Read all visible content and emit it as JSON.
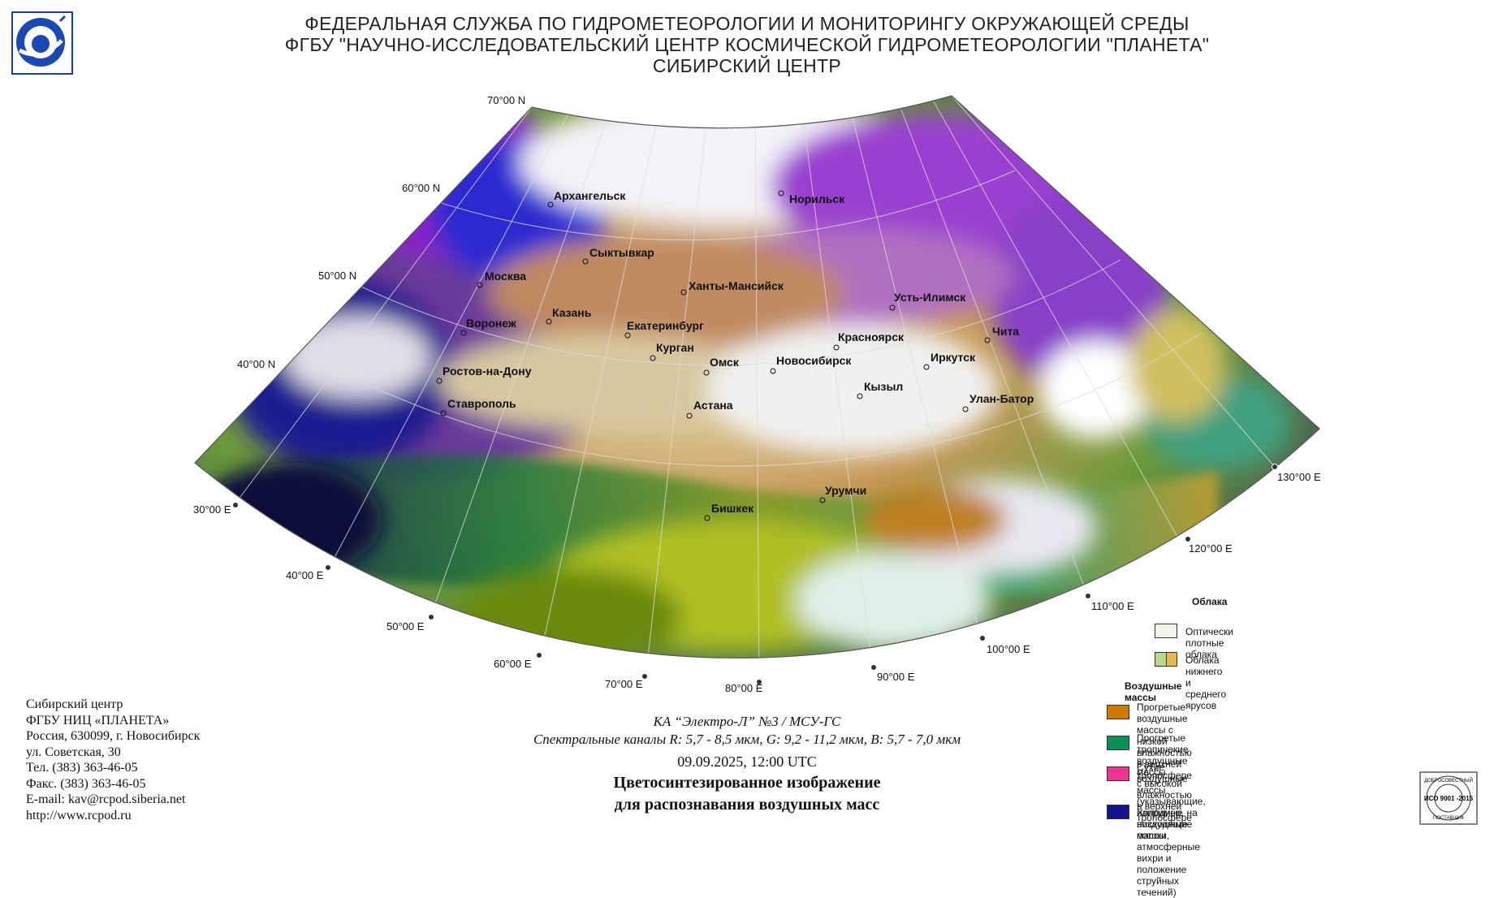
{
  "header": {
    "line1": "ФЕДЕРАЛЬНАЯ СЛУЖБА ПО ГИДРОМЕТЕОРОЛОГИИ И МОНИТОРИНГУ ОКРУЖАЮЩЕЙ СРЕДЫ",
    "line2": "ФГБУ \"НАУЧНО-ИССЛЕДОВАТЕЛЬСКИЙ ЦЕНТР КОСМИЧЕСКОЙ ГИДРОМЕТЕОРОЛОГИИ \"ПЛАНЕТА\"",
    "line3": "СИБИРСКИЙ ЦЕНТР"
  },
  "map": {
    "lat_labels": [
      "70°00 N",
      "60°00 N",
      "50°00 N",
      "40°00 N"
    ],
    "lon_labels": [
      "30°00 E",
      "40°00 E",
      "50°00 E",
      "60°00 E",
      "70°00 E",
      "80°00 E",
      "90°00 E",
      "100°00 E",
      "110°00 E",
      "120°00 E",
      "130°00 E"
    ],
    "cities": [
      "Архангельск",
      "Норильск",
      "Сыктывкар",
      "Москва",
      "Ханты-Мансийск",
      "Усть-Илимск",
      "Казань",
      "Воронеж",
      "Екатеринбург",
      "Красноярск",
      "Чита",
      "Курган",
      "Омск",
      "Новосибирск",
      "Иркутск",
      "Ростов-на-Дону",
      "Кызыл",
      "Улан-Батор",
      "Ставрополь",
      "Астана",
      "Урумчи",
      "Бишкек"
    ]
  },
  "footer": {
    "org_lines": [
      "Сибирский центр",
      "ФГБУ НИЦ «ПЛАНЕТА»",
      "Россия, 630099, г. Новосибирск",
      "ул. Советская, 30",
      "Тел. (383) 363-46-05",
      "Факс. (383) 363-46-05",
      "E-mail: kav@rcpod.siberia.net",
      "http://www.rcpod.ru"
    ],
    "satellite": "КА “Электро-Л” №3 / МСУ-ГС",
    "channels": "Спектральные каналы R: 5,7 - 8,5 мкм, G: 9,2 - 11,2 мкм, B: 5,7 - 7,0 мкм",
    "datetime": "09.09.2025, 12:00 UTC",
    "title1": "Цветосинтезированное изображение",
    "title2": "для распознавания воздушных масс"
  },
  "legend": {
    "clouds_header": "Облака",
    "clouds": [
      {
        "label": "Оптически плотные облака",
        "color": "#f2f2e6"
      },
      {
        "label": "Облака нижнего и среднего ярусов",
        "color": "#b9d98a",
        "color2": "#e8b84a"
      }
    ],
    "air_header": "Воздушные массы",
    "air": [
      {
        "label": "Прогретые воздушные массы с низкой влажностью в верхней тропосфере",
        "lines": [
          "Прогретые воздушные массы с низкой",
          "влажностью в верхней тропосфере"
        ],
        "color": "#cc7a00"
      },
      {
        "label": "Прогретые тропичекие воздушные массы с высокой влажностью в верхней тропосфере",
        "lines": [
          "Прогретые тропичекие воздушные массы",
          "с высокой влажностью в верхней тропосфере"
        ],
        "color": "#0a8f56"
      },
      {
        "label": "Сухие воздушные массы",
        "lines": [
          "Сухие воздушные массы (указывающие, например, на",
          "нисходящие потоки, атмосферные вихри и положение",
          "струйных течений)"
        ],
        "color": "#f0338f"
      },
      {
        "label": "Холодные воздушные массы",
        "lines": [
          "Холодные воздушные массы"
        ],
        "color": "#14148c"
      }
    ]
  },
  "iso_badge": {
    "text": "ИСО 9001 -2015",
    "ring_top": "ДОБРОСОВЕСТНЫЙ",
    "ring_bottom": "ПОСТАВЩИК"
  }
}
